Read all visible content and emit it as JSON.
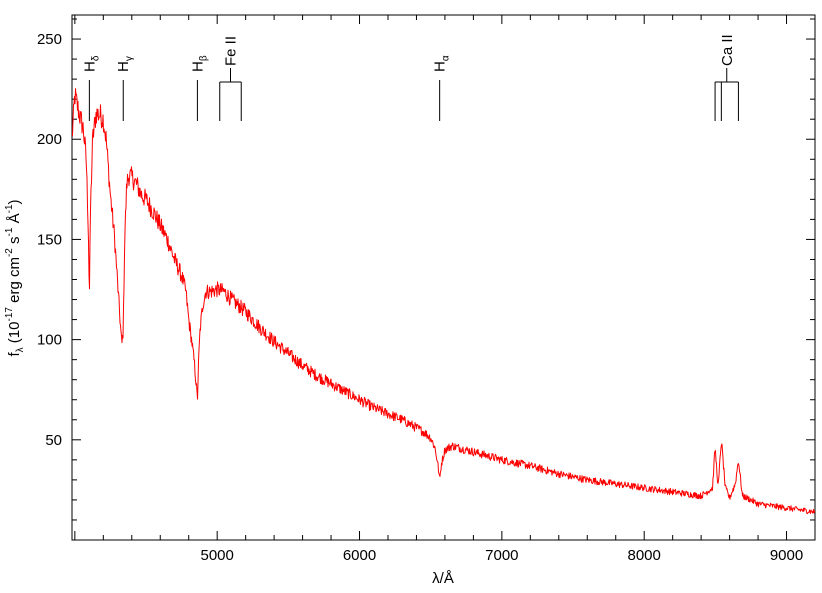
{
  "chart_data": {
    "type": "line",
    "title": "",
    "xlabel": {
      "main": "λ/Å"
    },
    "ylabel": {
      "prefix": "f",
      "sub": "λ",
      "text1": " (10",
      "exp1": "-17",
      "text2": " erg cm",
      "exp2": "-2",
      "text3": " s",
      "exp3": "-1",
      "text4": " Å",
      "exp4": "-1",
      "text5": ")"
    },
    "xlim": [
      3980,
      9200
    ],
    "ylim": [
      0,
      262
    ],
    "xticks": [
      5000,
      6000,
      7000,
      8000,
      9000
    ],
    "xtick_labels": [
      "5000",
      "6000",
      "7000",
      "8000",
      "9000"
    ],
    "yticks": [
      50,
      100,
      150,
      200,
      250
    ],
    "ytick_labels": [
      "50",
      "100",
      "150",
      "200",
      "250"
    ],
    "grid": false,
    "line_color": "#ff0000",
    "series": [
      {
        "x": [
          3980,
          4000,
          4030,
          4060,
          4080,
          4095,
          4102,
          4110,
          4125,
          4150,
          4180,
          4200,
          4220,
          4250,
          4280,
          4310,
          4330,
          4340,
          4350,
          4365,
          4380,
          4400,
          4430,
          4470,
          4500,
          4550,
          4600,
          4650,
          4700,
          4750,
          4780,
          4800,
          4820,
          4840,
          4850,
          4861,
          4870,
          4880,
          4900,
          4920,
          4950,
          5000,
          5050,
          5100,
          5200,
          5300,
          5400,
          5500,
          5600,
          5700,
          5800,
          5900,
          6000,
          6100,
          6200,
          6300,
          6400,
          6450,
          6500,
          6530,
          6550,
          6563,
          6575,
          6600,
          6650,
          6700,
          6800,
          7000,
          7200,
          7400,
          7600,
          7800,
          8000,
          8200,
          8400,
          8480,
          8498,
          8520,
          8542,
          8570,
          8600,
          8640,
          8662,
          8690,
          8750,
          8800,
          8900,
          9000,
          9100,
          9200
        ],
        "y": [
          200,
          222,
          213,
          205,
          190,
          155,
          120,
          165,
          200,
          213,
          212,
          210,
          200,
          172,
          150,
          118,
          97,
          105,
          150,
          178,
          182,
          181,
          178,
          172,
          170,
          164,
          157,
          150,
          140,
          132,
          124,
          110,
          100,
          88,
          80,
          70,
          90,
          105,
          118,
          124,
          124,
          125,
          124,
          120,
          114,
          106,
          99,
          93,
          87,
          82,
          78,
          74,
          70,
          66,
          63,
          60,
          56,
          54,
          51,
          46,
          38,
          30,
          38,
          45,
          47,
          46,
          44,
          40,
          37,
          33,
          30,
          28,
          26,
          24,
          22,
          26,
          46,
          26,
          50,
          26,
          21,
          28,
          40,
          22,
          20,
          18,
          17,
          16,
          15,
          14
        ]
      }
    ],
    "annotations": [
      {
        "label": "H",
        "sub": "δ",
        "x": [
          4102
        ]
      },
      {
        "label": "H",
        "sub": "γ",
        "x": [
          4340
        ]
      },
      {
        "label": "H",
        "sub": "β",
        "x": [
          4861
        ]
      },
      {
        "label": "Fe II",
        "sub": "",
        "x": [
          5018,
          5169
        ]
      },
      {
        "label": "H",
        "sub": "α",
        "x": [
          6563
        ]
      },
      {
        "label": "Ca II",
        "sub": "",
        "x": [
          8498,
          8542,
          8662
        ]
      }
    ]
  }
}
